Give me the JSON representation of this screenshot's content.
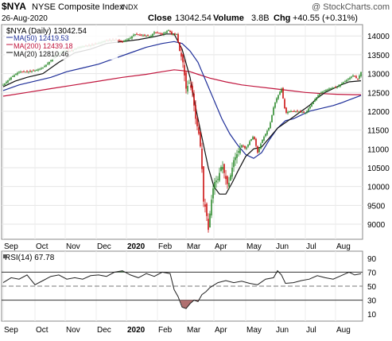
{
  "header": {
    "symbol": "$NYA",
    "name": "NYSE Composite Index",
    "exchange": "INDX",
    "date": "26-Aug-2020",
    "close_label": "Close",
    "close_value": "13042.54",
    "volume_label": "Volume",
    "volume_value": "3.8B",
    "chg_label": "Chg",
    "chg_value": "+40.55 (+0.31%)",
    "watermark": "@ StockCharts.com"
  },
  "legend": {
    "price": "$NYA (Daily) 13042.54",
    "ma50": "MA(50) 12419.53",
    "ma200": "MA(200) 12439.18",
    "ma20": "MA(20) 12810.46"
  },
  "rsi_label": "RSI(14) 67.78",
  "colors": {
    "up": "#2e8b2e",
    "down": "#cc1111",
    "ma50": "#1f2f99",
    "ma200": "#c0143c",
    "ma20": "#111111",
    "rsi_fill_over": "#4a7a4a",
    "rsi_fill_under": "#b07070"
  },
  "chart_data": {
    "type": "line",
    "title": "$NYA NYSE Composite Index INDX",
    "x_labels": [
      "Sep",
      "Oct",
      "Nov",
      "Dec",
      "2020",
      "Feb",
      "Mar",
      "Apr",
      "May",
      "Jun",
      "Jul",
      "Aug"
    ],
    "price_axis": {
      "ticks": [
        9000,
        9500,
        10000,
        10500,
        11000,
        11500,
        12000,
        12500,
        13000,
        13500,
        14000
      ],
      "ylim": [
        8600,
        14300
      ]
    },
    "rsi_axis": {
      "ticks": [
        10,
        30,
        50,
        70,
        90
      ],
      "ylim": [
        0,
        100
      ],
      "overbought": 70,
      "oversold": 30
    },
    "series": [
      {
        "name": "$NYA (Daily)",
        "values": [
          [
            0,
            12700
          ],
          [
            10,
            12900
          ],
          [
            20,
            13050
          ],
          [
            30,
            13050
          ],
          [
            40,
            13080
          ],
          [
            50,
            13160
          ],
          [
            60,
            13350
          ],
          [
            70,
            13550
          ],
          [
            80,
            13620
          ],
          [
            85,
            13600
          ],
          [
            95,
            13700
          ],
          [
            108,
            13750
          ],
          [
            118,
            13800
          ],
          [
            130,
            13880
          ],
          [
            140,
            13900
          ],
          [
            150,
            13850
          ],
          [
            160,
            13950
          ],
          [
            165,
            14050
          ],
          [
            175,
            14020
          ],
          [
            185,
            13980
          ],
          [
            190,
            14100
          ],
          [
            200,
            14050
          ],
          [
            208,
            14150
          ],
          [
            212,
            14050
          ],
          [
            218,
            14050
          ],
          [
            222,
            13600
          ],
          [
            226,
            13300
          ],
          [
            230,
            12600
          ],
          [
            234,
            12750
          ],
          [
            238,
            12500
          ],
          [
            242,
            11800
          ],
          [
            246,
            11400
          ],
          [
            249,
            10900
          ],
          [
            252,
            9600
          ],
          [
            255,
            9400
          ],
          [
            258,
            8850
          ],
          [
            261,
            9500
          ],
          [
            265,
            10100
          ],
          [
            270,
            10200
          ],
          [
            275,
            10600
          ],
          [
            280,
            10200
          ],
          [
            283,
            10000
          ],
          [
            290,
            10700
          ],
          [
            295,
            10900
          ],
          [
            300,
            11100
          ],
          [
            305,
            11000
          ],
          [
            310,
            11200
          ],
          [
            315,
            11350
          ],
          [
            320,
            10900
          ],
          [
            325,
            11200
          ],
          [
            330,
            11400
          ],
          [
            335,
            11600
          ],
          [
            340,
            12100
          ],
          [
            343,
            12300
          ],
          [
            350,
            12600
          ],
          [
            355,
            11950
          ],
          [
            360,
            12000
          ],
          [
            370,
            12000
          ],
          [
            380,
            11950
          ],
          [
            385,
            12100
          ],
          [
            390,
            12250
          ],
          [
            395,
            12400
          ],
          [
            400,
            12500
          ],
          [
            410,
            12600
          ],
          [
            420,
            12650
          ],
          [
            430,
            12800
          ],
          [
            440,
            12950
          ],
          [
            446,
            12850
          ],
          [
            450,
            13042.54
          ]
        ]
      },
      {
        "name": "MA(50)",
        "values": [
          [
            0,
            12550
          ],
          [
            20,
            12700
          ],
          [
            40,
            12800
          ],
          [
            60,
            12900
          ],
          [
            80,
            13050
          ],
          [
            100,
            13150
          ],
          [
            120,
            13250
          ],
          [
            140,
            13400
          ],
          [
            160,
            13550
          ],
          [
            180,
            13700
          ],
          [
            200,
            13800
          ],
          [
            215,
            13850
          ],
          [
            225,
            13800
          ],
          [
            235,
            13600
          ],
          [
            245,
            13300
          ],
          [
            255,
            12800
          ],
          [
            265,
            12300
          ],
          [
            275,
            11800
          ],
          [
            285,
            11400
          ],
          [
            295,
            11100
          ],
          [
            305,
            10850
          ],
          [
            315,
            10750
          ],
          [
            325,
            10900
          ],
          [
            335,
            11250
          ],
          [
            345,
            11550
          ],
          [
            355,
            11750
          ],
          [
            365,
            11800
          ],
          [
            375,
            11900
          ],
          [
            385,
            12000
          ],
          [
            395,
            12050
          ],
          [
            405,
            12100
          ],
          [
            415,
            12150
          ],
          [
            425,
            12220
          ],
          [
            435,
            12300
          ],
          [
            450,
            12419.53
          ]
        ]
      },
      {
        "name": "MA(200)",
        "values": [
          [
            0,
            12400
          ],
          [
            30,
            12500
          ],
          [
            60,
            12600
          ],
          [
            90,
            12700
          ],
          [
            120,
            12800
          ],
          [
            150,
            12900
          ],
          [
            180,
            12980
          ],
          [
            200,
            13050
          ],
          [
            215,
            13100
          ],
          [
            225,
            13080
          ],
          [
            235,
            13050
          ],
          [
            245,
            12980
          ],
          [
            260,
            12880
          ],
          [
            280,
            12780
          ],
          [
            300,
            12700
          ],
          [
            320,
            12650
          ],
          [
            340,
            12600
          ],
          [
            360,
            12550
          ],
          [
            380,
            12500
          ],
          [
            400,
            12470
          ],
          [
            420,
            12450
          ],
          [
            440,
            12440
          ],
          [
            450,
            12439.18
          ]
        ]
      },
      {
        "name": "MA(20)",
        "values": [
          [
            0,
            12650
          ],
          [
            15,
            12800
          ],
          [
            30,
            12900
          ],
          [
            50,
            13000
          ],
          [
            70,
            13300
          ],
          [
            90,
            13550
          ],
          [
            110,
            13650
          ],
          [
            130,
            13800
          ],
          [
            150,
            13850
          ],
          [
            170,
            13900
          ],
          [
            190,
            13980
          ],
          [
            205,
            14050
          ],
          [
            215,
            14050
          ],
          [
            225,
            13650
          ],
          [
            235,
            12900
          ],
          [
            243,
            12000
          ],
          [
            250,
            11300
          ],
          [
            258,
            10500
          ],
          [
            265,
            10000
          ],
          [
            272,
            9800
          ],
          [
            280,
            9800
          ],
          [
            288,
            10100
          ],
          [
            295,
            10400
          ],
          [
            305,
            10800
          ],
          [
            315,
            11000
          ],
          [
            325,
            11050
          ],
          [
            335,
            11300
          ],
          [
            345,
            11550
          ],
          [
            355,
            11700
          ],
          [
            365,
            11850
          ],
          [
            375,
            12000
          ],
          [
            385,
            12150
          ],
          [
            395,
            12350
          ],
          [
            405,
            12500
          ],
          [
            415,
            12600
          ],
          [
            425,
            12700
          ],
          [
            435,
            12780
          ],
          [
            450,
            12810.46
          ]
        ]
      },
      {
        "name": "RSI(14)",
        "values": [
          [
            0,
            55
          ],
          [
            10,
            62
          ],
          [
            20,
            60
          ],
          [
            30,
            66
          ],
          [
            40,
            52
          ],
          [
            50,
            58
          ],
          [
            60,
            64
          ],
          [
            70,
            66
          ],
          [
            80,
            60
          ],
          [
            90,
            62
          ],
          [
            100,
            60
          ],
          [
            110,
            65
          ],
          [
            120,
            66
          ],
          [
            130,
            64
          ],
          [
            140,
            70
          ],
          [
            150,
            72
          ],
          [
            160,
            66
          ],
          [
            170,
            62
          ],
          [
            180,
            68
          ],
          [
            190,
            64
          ],
          [
            200,
            70
          ],
          [
            210,
            68
          ],
          [
            215,
            45
          ],
          [
            220,
            35
          ],
          [
            225,
            20
          ],
          [
            230,
            18
          ],
          [
            235,
            25
          ],
          [
            240,
            30
          ],
          [
            245,
            28
          ],
          [
            250,
            38
          ],
          [
            255,
            42
          ],
          [
            260,
            48
          ],
          [
            270,
            55
          ],
          [
            280,
            58
          ],
          [
            290,
            55
          ],
          [
            300,
            57
          ],
          [
            310,
            54
          ],
          [
            320,
            52
          ],
          [
            330,
            60
          ],
          [
            340,
            62
          ],
          [
            345,
            72
          ],
          [
            350,
            66
          ],
          [
            355,
            54
          ],
          [
            365,
            55
          ],
          [
            375,
            58
          ],
          [
            385,
            60
          ],
          [
            395,
            65
          ],
          [
            405,
            62
          ],
          [
            415,
            60
          ],
          [
            425,
            65
          ],
          [
            435,
            70
          ],
          [
            442,
            66
          ],
          [
            450,
            67.78
          ]
        ]
      }
    ]
  }
}
